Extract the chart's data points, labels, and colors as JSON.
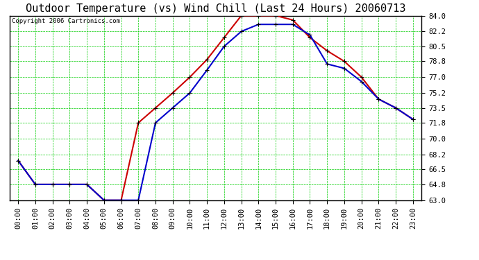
{
  "title": "Outdoor Temperature (vs) Wind Chill (Last 24 Hours) 20060713",
  "copyright": "Copyright 2006 Cartronics.com",
  "x_labels": [
    "00:00",
    "01:00",
    "02:00",
    "03:00",
    "04:00",
    "05:00",
    "06:00",
    "07:00",
    "08:00",
    "09:00",
    "10:00",
    "11:00",
    "12:00",
    "13:00",
    "14:00",
    "15:00",
    "16:00",
    "17:00",
    "18:00",
    "19:00",
    "20:00",
    "21:00",
    "22:00",
    "23:00"
  ],
  "temp_red": [
    67.5,
    64.8,
    64.8,
    64.8,
    64.8,
    63.0,
    63.0,
    71.8,
    73.5,
    75.2,
    77.0,
    79.0,
    81.5,
    84.0,
    84.0,
    84.0,
    83.5,
    81.5,
    80.0,
    78.8,
    77.0,
    74.5,
    73.5,
    72.2
  ],
  "windchill_blue": [
    67.5,
    64.8,
    64.8,
    64.8,
    64.8,
    63.0,
    63.0,
    63.0,
    71.8,
    73.5,
    75.2,
    77.8,
    80.5,
    82.2,
    83.0,
    83.0,
    83.0,
    81.8,
    78.5,
    78.0,
    76.5,
    74.5,
    73.5,
    72.2
  ],
  "y_ticks": [
    63.0,
    64.8,
    66.5,
    68.2,
    70.0,
    71.8,
    73.5,
    75.2,
    77.0,
    78.8,
    80.5,
    82.2,
    84.0
  ],
  "y_tick_labels": [
    "63.0",
    "64.8",
    "66.5",
    "68.2",
    "70.0",
    "71.8",
    "73.5",
    "75.2",
    "77.0",
    "78.8",
    "80.5",
    "82.2",
    "84.0"
  ],
  "y_min": 63.0,
  "y_max": 84.0,
  "bg_color": "#ffffff",
  "plot_bg_color": "#ffffff",
  "grid_color": "#00cc00",
  "red_line_color": "#cc0000",
  "blue_line_color": "#0000cc",
  "title_fontsize": 11,
  "copyright_fontsize": 6.5,
  "tick_fontsize": 7.5,
  "marker_size": 4,
  "line_width": 1.5
}
